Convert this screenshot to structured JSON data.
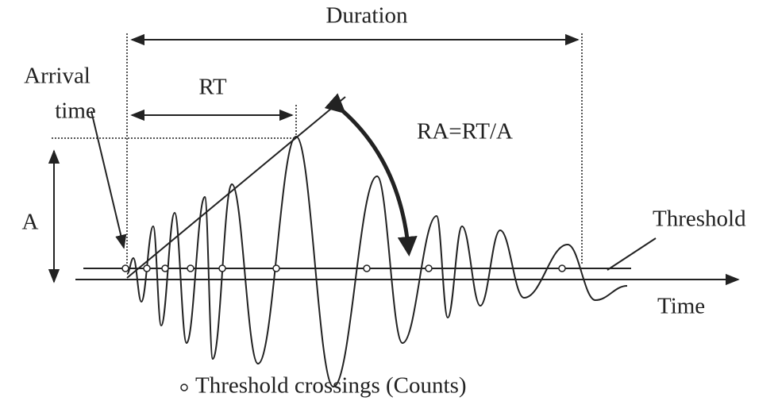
{
  "labels": {
    "duration": "Duration",
    "arrival": "Arrival",
    "time_word": "time",
    "rt": "RT",
    "ra": "RA=RT/A",
    "a": "A",
    "threshold": "Threshold",
    "time_axis": "Time",
    "legend": "Threshold crossings (Counts)"
  }
}
